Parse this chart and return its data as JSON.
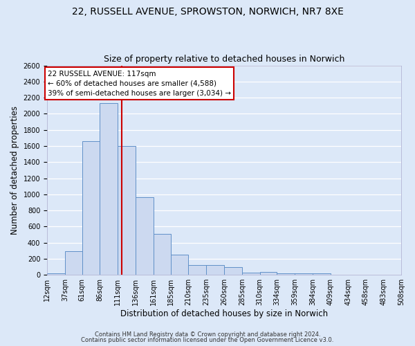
{
  "title1": "22, RUSSELL AVENUE, SPROWSTON, NORWICH, NR7 8XE",
  "title2": "Size of property relative to detached houses in Norwich",
  "xlabel": "Distribution of detached houses by size in Norwich",
  "ylabel": "Number of detached properties",
  "bin_labels": [
    "12sqm",
    "37sqm",
    "61sqm",
    "86sqm",
    "111sqm",
    "136sqm",
    "161sqm",
    "185sqm",
    "210sqm",
    "235sqm",
    "260sqm",
    "285sqm",
    "310sqm",
    "334sqm",
    "359sqm",
    "384sqm",
    "409sqm",
    "434sqm",
    "458sqm",
    "483sqm",
    "508sqm"
  ],
  "bin_edges": [
    12,
    37,
    61,
    86,
    111,
    136,
    161,
    185,
    210,
    235,
    260,
    285,
    310,
    334,
    359,
    384,
    409,
    434,
    458,
    483,
    508
  ],
  "bar_heights": [
    20,
    295,
    1660,
    2130,
    1600,
    960,
    505,
    250,
    120,
    120,
    95,
    30,
    35,
    20,
    20,
    20,
    5,
    5,
    5,
    5
  ],
  "bar_color": "#ccd9f0",
  "bar_edge_color": "#6090c8",
  "bar_edge_width": 0.7,
  "vline_x": 117,
  "vline_color": "#cc0000",
  "annotation_title": "22 RUSSELL AVENUE: 117sqm",
  "annotation_line1": "← 60% of detached houses are smaller (4,588)",
  "annotation_line2": "39% of semi-detached houses are larger (3,034) →",
  "annotation_box_color": "#ffffff",
  "annotation_box_edge": "#cc0000",
  "ylim": [
    0,
    2600
  ],
  "yticks": [
    0,
    200,
    400,
    600,
    800,
    1000,
    1200,
    1400,
    1600,
    1800,
    2000,
    2200,
    2400,
    2600
  ],
  "footer1": "Contains HM Land Registry data © Crown copyright and database right 2024.",
  "footer2": "Contains public sector information licensed under the Open Government Licence v3.0.",
  "bg_color": "#dce8f8",
  "plot_bg_color": "#dce8f8",
  "grid_color": "#ffffff",
  "title1_fontsize": 10,
  "title2_fontsize": 9,
  "axis_label_fontsize": 8.5,
  "tick_fontsize": 7,
  "footer_fontsize": 6,
  "ann_fontsize": 7.5
}
